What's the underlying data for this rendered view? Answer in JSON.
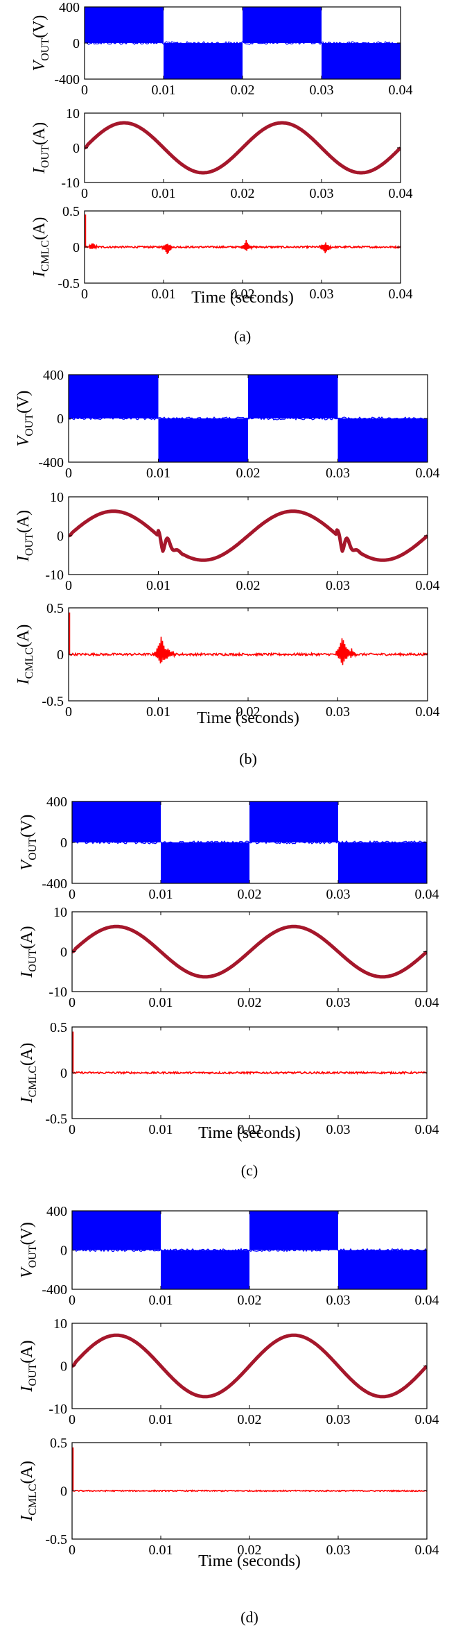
{
  "figure_title": "",
  "colors": {
    "voltage": "#0000ff",
    "current": "#a5172b",
    "cmlc": "#ff0000",
    "axes": "#000000"
  },
  "chart_data": [
    {
      "panel": "a",
      "caption": "(a)",
      "xlabel": "Time (seconds)",
      "plots": [
        {
          "type": "line",
          "signal": "vout",
          "ylabel_main": "V",
          "ylabel_sub": "OUT",
          "ylabel_unit": "(V)",
          "xlim": [
            0,
            0.04
          ],
          "ylim": [
            -400,
            400
          ],
          "x_ticks": [
            "0",
            "0.01",
            "0.02",
            "0.03",
            "0.04"
          ],
          "y_ticks": [
            "-400",
            "0",
            "400"
          ],
          "amplitude": 400,
          "transitions": [
            0.01,
            0.02,
            0.03
          ]
        },
        {
          "type": "line",
          "signal": "iout",
          "ylabel_main": "I",
          "ylabel_sub": "OUT",
          "ylabel_unit": "(A)",
          "xlim": [
            0,
            0.04
          ],
          "ylim": [
            -10,
            10
          ],
          "x_ticks": [
            "0",
            "0.01",
            "0.02",
            "0.03",
            "0.04"
          ],
          "y_ticks": [
            "-10",
            "0",
            "10"
          ],
          "amplitude": 7.2,
          "frequency_hz": 50,
          "disturbances": []
        },
        {
          "type": "line",
          "signal": "icmlc",
          "ylabel_main": "I",
          "ylabel_sub": "CMLC",
          "ylabel_unit": "(A)",
          "xlim": [
            0,
            0.04
          ],
          "ylim": [
            -0.5,
            0.5
          ],
          "x_ticks": [
            "0",
            "0.01",
            "0.02",
            "0.03",
            "0.04"
          ],
          "y_ticks": [
            "-0.5",
            "0",
            "0.5"
          ],
          "startup_spike": 0.45,
          "noise": 0.012,
          "bursts": [
            [
              0.001,
              0.05
            ],
            [
              0.0105,
              -0.1
            ],
            [
              0.0205,
              0.1
            ],
            [
              0.0305,
              -0.1
            ]
          ]
        }
      ]
    },
    {
      "panel": "b",
      "caption": "(b)",
      "xlabel": "Time (seconds)",
      "plots": [
        {
          "type": "line",
          "signal": "vout",
          "ylabel_main": "V",
          "ylabel_sub": "OUT",
          "ylabel_unit": "(V)",
          "xlim": [
            0,
            0.04
          ],
          "ylim": [
            -400,
            400
          ],
          "x_ticks": [
            "0",
            "0.01",
            "0.02",
            "0.03",
            "0.04"
          ],
          "y_ticks": [
            "-400",
            "0",
            "400"
          ],
          "amplitude": 400,
          "transitions": [
            0.01,
            0.02,
            0.03
          ]
        },
        {
          "type": "line",
          "signal": "iout",
          "ylabel_main": "I",
          "ylabel_sub": "OUT",
          "ylabel_unit": "(A)",
          "xlim": [
            0,
            0.04
          ],
          "ylim": [
            -10,
            10
          ],
          "x_ticks": [
            "0",
            "0.01",
            "0.02",
            "0.03",
            "0.04"
          ],
          "y_ticks": [
            "-10",
            "0",
            "10"
          ],
          "amplitude": 6.3,
          "frequency_hz": 50,
          "disturbances": [
            0.0105,
            0.0305
          ]
        },
        {
          "type": "line",
          "signal": "icmlc",
          "ylabel_main": "I",
          "ylabel_sub": "CMLC",
          "ylabel_unit": "(A)",
          "xlim": [
            0,
            0.04
          ],
          "ylim": [
            -0.5,
            0.5
          ],
          "x_ticks": [
            "0",
            "0.01",
            "0.02",
            "0.03",
            "0.04"
          ],
          "y_ticks": [
            "-0.5",
            "0",
            "0.5"
          ],
          "startup_spike": 0.45,
          "noise": 0.012,
          "bursts": [
            [
              0.0103,
              0.2
            ],
            [
              0.0112,
              0.06
            ],
            [
              0.0305,
              0.2
            ],
            [
              0.0315,
              0.06
            ]
          ]
        }
      ]
    },
    {
      "panel": "c",
      "caption": "(c)",
      "xlabel": "Time (seconds)",
      "plots": [
        {
          "type": "line",
          "signal": "vout",
          "ylabel_main": "V",
          "ylabel_sub": "OUT",
          "ylabel_unit": "(V)",
          "xlim": [
            0,
            0.04
          ],
          "ylim": [
            -400,
            400
          ],
          "x_ticks": [
            "0",
            "0.01",
            "0.02",
            "0.03",
            "0.04"
          ],
          "y_ticks": [
            "-400",
            "0",
            "400"
          ],
          "amplitude": 400,
          "transitions": [
            0.01,
            0.02,
            0.03
          ]
        },
        {
          "type": "line",
          "signal": "iout",
          "ylabel_main": "I",
          "ylabel_sub": "OUT",
          "ylabel_unit": "(A)",
          "xlim": [
            0,
            0.04
          ],
          "ylim": [
            -10,
            10
          ],
          "x_ticks": [
            "0",
            "0.01",
            "0.02",
            "0.03",
            "0.04"
          ],
          "y_ticks": [
            "-10",
            "0",
            "10"
          ],
          "amplitude": 6.3,
          "frequency_hz": 50,
          "disturbances": []
        },
        {
          "type": "line",
          "signal": "icmlc",
          "ylabel_main": "I",
          "ylabel_sub": "CMLC",
          "ylabel_unit": "(A)",
          "xlim": [
            0,
            0.04
          ],
          "ylim": [
            -0.5,
            0.5
          ],
          "x_ticks": [
            "0",
            "0.01",
            "0.02",
            "0.03",
            "0.04"
          ],
          "y_ticks": [
            "-0.5",
            "0",
            "0.5"
          ],
          "startup_spike": 0.45,
          "noise": 0.01,
          "bursts": []
        }
      ]
    },
    {
      "panel": "d",
      "caption": "(d)",
      "xlabel": "Time (seconds)",
      "plots": [
        {
          "type": "line",
          "signal": "vout",
          "ylabel_main": "V",
          "ylabel_sub": "OUT",
          "ylabel_unit": "(V)",
          "xlim": [
            0,
            0.04
          ],
          "ylim": [
            -400,
            400
          ],
          "x_ticks": [
            "0",
            "0.01",
            "0.02",
            "0.03",
            "0.04"
          ],
          "y_ticks": [
            "-400",
            "0",
            "400"
          ],
          "amplitude": 400,
          "transitions": [
            0.01,
            0.02,
            0.03
          ]
        },
        {
          "type": "line",
          "signal": "iout",
          "ylabel_main": "I",
          "ylabel_sub": "OUT",
          "ylabel_unit": "(A)",
          "xlim": [
            0,
            0.04
          ],
          "ylim": [
            -10,
            10
          ],
          "x_ticks": [
            "0",
            "0.01",
            "0.02",
            "0.03",
            "0.04"
          ],
          "y_ticks": [
            "-10",
            "0",
            "10"
          ],
          "amplitude": 7.2,
          "frequency_hz": 50,
          "disturbances": []
        },
        {
          "type": "line",
          "signal": "icmlc",
          "ylabel_main": "I",
          "ylabel_sub": "CMLC",
          "ylabel_unit": "(A)",
          "xlim": [
            0,
            0.04
          ],
          "ylim": [
            -0.5,
            0.5
          ],
          "x_ticks": [
            "0",
            "0.01",
            "0.02",
            "0.03",
            "0.04"
          ],
          "y_ticks": [
            "-0.5",
            "0",
            "0.5"
          ],
          "startup_spike": 0.45,
          "noise": 0.006,
          "bursts": []
        }
      ]
    }
  ]
}
